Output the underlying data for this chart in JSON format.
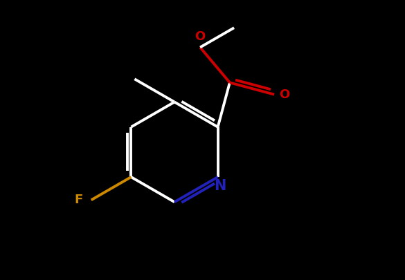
{
  "background_color": "#000000",
  "bond_color": "#ffffff",
  "N_color": "#2222bb",
  "O_color": "#cc0000",
  "F_color": "#cc8800",
  "bond_width": 2.8,
  "figsize": [
    5.85,
    4.05
  ],
  "dpi": 100,
  "xlim": [
    0,
    10
  ],
  "ylim": [
    0,
    7
  ]
}
